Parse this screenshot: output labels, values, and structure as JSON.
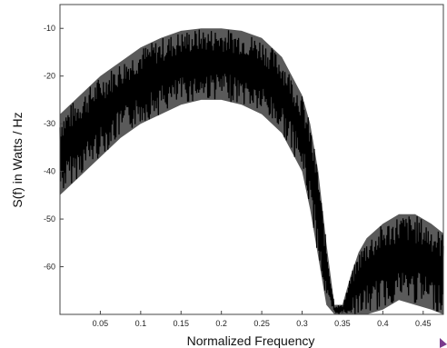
{
  "chart_data": {
    "type": "line",
    "title": "",
    "xlabel": "Normalized Frequency",
    "ylabel": "S(f) in Watts / Hz",
    "xlim": [
      0.0,
      0.475
    ],
    "ylim": [
      -70,
      -5
    ],
    "grid": false,
    "xticks": [
      0.05,
      0.1,
      0.15,
      0.2,
      0.25,
      0.3,
      0.35,
      0.4,
      0.45
    ],
    "xtick_labels": [
      "0.05",
      "0.1",
      "0.15",
      "0.2",
      "0.25",
      "0.3",
      "0.35",
      "0.4",
      "0.45"
    ],
    "yticks": [
      -10,
      -20,
      -30,
      -40,
      -50,
      -60
    ],
    "ytick_labels": [
      "-10",
      "-20",
      "-30",
      "-40",
      "-50",
      "-60"
    ],
    "series": [
      {
        "color": "#000000",
        "x": [
          0.0,
          0.025,
          0.05,
          0.075,
          0.1,
          0.125,
          0.15,
          0.175,
          0.2,
          0.225,
          0.25,
          0.275,
          0.3,
          0.31,
          0.32,
          0.33,
          0.34,
          0.35,
          0.36,
          0.37,
          0.38,
          0.4,
          0.42,
          0.44,
          0.46,
          0.475
        ],
        "upper": [
          -28,
          -24,
          -20,
          -17,
          -14,
          -12,
          -10.5,
          -10,
          -10,
          -10.5,
          -12,
          -16,
          -24,
          -30,
          -40,
          -55,
          -68,
          -68,
          -62,
          -57,
          -54,
          -51,
          -49,
          -49,
          -51,
          -53
        ],
        "lower": [
          -45,
          -41,
          -37,
          -33,
          -30,
          -28,
          -26,
          -25,
          -25,
          -26,
          -28,
          -32,
          -40,
          -48,
          -58,
          -68,
          -70,
          -70,
          -70,
          -70,
          -70,
          -69,
          -67,
          -68,
          -69,
          -70
        ]
      }
    ]
  }
}
